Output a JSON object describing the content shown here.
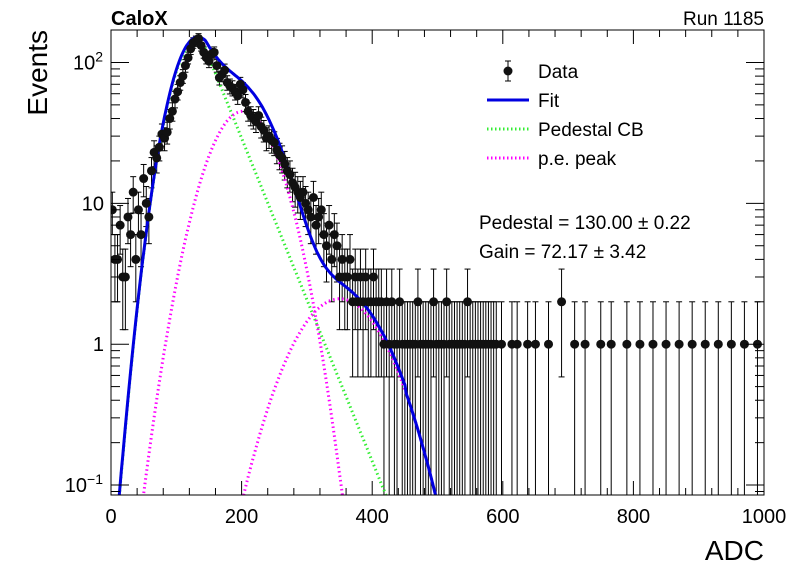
{
  "chart_data": {
    "type": "scatter",
    "title_left": "CaloX",
    "title_right": "Run 1185",
    "xlabel": "ADC",
    "ylabel": "Events",
    "xlim": [
      0,
      1000
    ],
    "ylim": [
      0.085,
      170
    ],
    "yscale": "log",
    "grid": false,
    "legend_position": "top-right",
    "x_ticks": [
      "0",
      "200",
      "400",
      "600",
      "800",
      "1000"
    ],
    "y_ticks": [
      {
        "value": 0.1,
        "base": "10",
        "exp": "−1"
      },
      {
        "value": 1,
        "base": "1",
        "exp": ""
      },
      {
        "value": 10,
        "base": "10",
        "exp": ""
      },
      {
        "value": 100,
        "base": "10",
        "exp": "2"
      }
    ],
    "legend": [
      {
        "label": "Data",
        "style": "marker",
        "color": "#000000"
      },
      {
        "label": "Fit",
        "style": "solid",
        "color": "#0000e0"
      },
      {
        "label": "Pedestal CB",
        "style": "dotted",
        "color": "#33ee33"
      },
      {
        "label": "p.e. peak",
        "style": "dotted",
        "color": "#ff00ff"
      }
    ],
    "annotations": [
      {
        "label": "Pedestal",
        "value": "130.00",
        "error": "0.22"
      },
      {
        "label": "Gain",
        "value": "72.17",
        "error": "3.42"
      }
    ],
    "series": [
      {
        "name": "Data",
        "style": "points",
        "x": [
          2,
          6,
          10,
          14,
          18,
          22,
          26,
          30,
          34,
          38,
          42,
          46,
          50,
          54,
          58,
          62,
          66,
          70,
          74,
          78,
          82,
          86,
          90,
          94,
          98,
          102,
          106,
          110,
          114,
          118,
          122,
          126,
          130,
          134,
          138,
          142,
          146,
          150,
          154,
          158,
          162,
          166,
          170,
          174,
          178,
          182,
          186,
          190,
          194,
          198,
          202,
          206,
          210,
          214,
          218,
          222,
          226,
          230,
          234,
          238,
          242,
          246,
          250,
          254,
          258,
          262,
          266,
          270,
          274,
          278,
          282,
          286,
          290,
          294,
          298,
          302,
          306,
          310,
          314,
          318,
          322,
          326,
          330,
          334,
          338,
          342,
          346,
          350,
          354,
          358,
          362,
          366,
          370,
          374,
          378,
          382,
          386,
          390,
          394,
          398,
          402,
          406,
          410,
          414,
          418,
          422,
          426,
          430,
          434,
          438,
          442,
          446,
          450,
          454,
          458,
          462,
          466,
          470,
          474,
          478,
          482,
          486,
          490,
          494,
          498,
          502,
          506,
          510,
          514,
          518,
          522,
          526,
          530,
          534,
          538,
          542,
          546,
          550,
          554,
          558,
          562,
          566,
          570,
          574,
          578,
          582,
          586,
          590,
          598,
          614,
          622,
          638,
          650,
          670,
          690,
          710,
          726,
          750,
          766,
          790,
          810,
          830,
          850,
          870,
          890,
          910,
          930,
          950,
          970,
          990
        ],
        "y": [
          9,
          4,
          4,
          7,
          3,
          3,
          8,
          6,
          12,
          4,
          9,
          6,
          15,
          10,
          8,
          17,
          23,
          21,
          25,
          31,
          29,
          32,
          40,
          45,
          55,
          62,
          72,
          80,
          95,
          108,
          125,
          138,
          142,
          148,
          132,
          118,
          108,
          102,
          115,
          118,
          95,
          78,
          82,
          88,
          72,
          68,
          66,
          62,
          58,
          70,
          64,
          52,
          45,
          42,
          40,
          38,
          42,
          35,
          33,
          29,
          30,
          28,
          27,
          24,
          22,
          21,
          19,
          17,
          16,
          14,
          13,
          12,
          11,
          12,
          10,
          9,
          8,
          11,
          7,
          8,
          9,
          6,
          5,
          7,
          4,
          6,
          5,
          3,
          4,
          3,
          3,
          4,
          2,
          3,
          2,
          3,
          2,
          3,
          2,
          2,
          3,
          2,
          2,
          2,
          1,
          2,
          1,
          2,
          1,
          1,
          2,
          1,
          1,
          1,
          1,
          1,
          1,
          2,
          1,
          1,
          1,
          1,
          1,
          2,
          1,
          1,
          1,
          1,
          2,
          1,
          1,
          1,
          1,
          1,
          1,
          1,
          2,
          1,
          1,
          1,
          1,
          1,
          1,
          1,
          1,
          1,
          1,
          1,
          1,
          1,
          1,
          1,
          1,
          1,
          2,
          1,
          1,
          1,
          1,
          1,
          1,
          1,
          1,
          1,
          1,
          1,
          1,
          1,
          1,
          1
        ]
      },
      {
        "name": "Fit",
        "style": "solid",
        "color": "#0000e0",
        "x": [],
        "y": []
      },
      {
        "name": "Pedestal CB",
        "style": "dotted",
        "color": "#33ee33",
        "x": [],
        "y": []
      },
      {
        "name": "p.e. peak",
        "style": "dotted",
        "color": "#ff00ff",
        "x": [],
        "y": []
      }
    ],
    "model": {
      "pedestal": {
        "amplitude": 140,
        "mean": 130,
        "sigma": 30.4,
        "tail_slope": 0.0264,
        "tail_start": 145,
        "cutoff_x": 450
      },
      "pe_peaks": [
        {
          "amplitude": 45,
          "mean": 202,
          "sigma": 43
        },
        {
          "amplitude": 2.1,
          "mean": 350,
          "sigma": 58
        }
      ],
      "data_error_floor": 0.08
    }
  }
}
